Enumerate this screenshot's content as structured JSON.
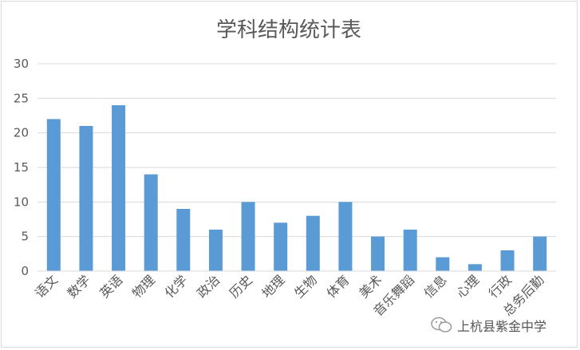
{
  "chart_data": {
    "type": "bar",
    "title": "学科结构统计表",
    "xlabel": "",
    "ylabel": "",
    "categories": [
      "语文",
      "数学",
      "英语",
      "物理",
      "化学",
      "政治",
      "历史",
      "地理",
      "生物",
      "体育",
      "美术",
      "音乐舞蹈",
      "信息",
      "心理",
      "行政",
      "总务后勤"
    ],
    "values": [
      22,
      21,
      24,
      14,
      9,
      6,
      10,
      7,
      8,
      10,
      5,
      6,
      2,
      1,
      3,
      5
    ],
    "ylim": [
      0,
      30
    ],
    "yticks": [
      "0",
      "5",
      "10",
      "15",
      "20",
      "25",
      "30"
    ],
    "grid": true,
    "legend": "none",
    "bar_color": "#5b9bd5"
  },
  "watermark": {
    "text": "上杭县紫金中学",
    "icon": "wechat-icon"
  }
}
